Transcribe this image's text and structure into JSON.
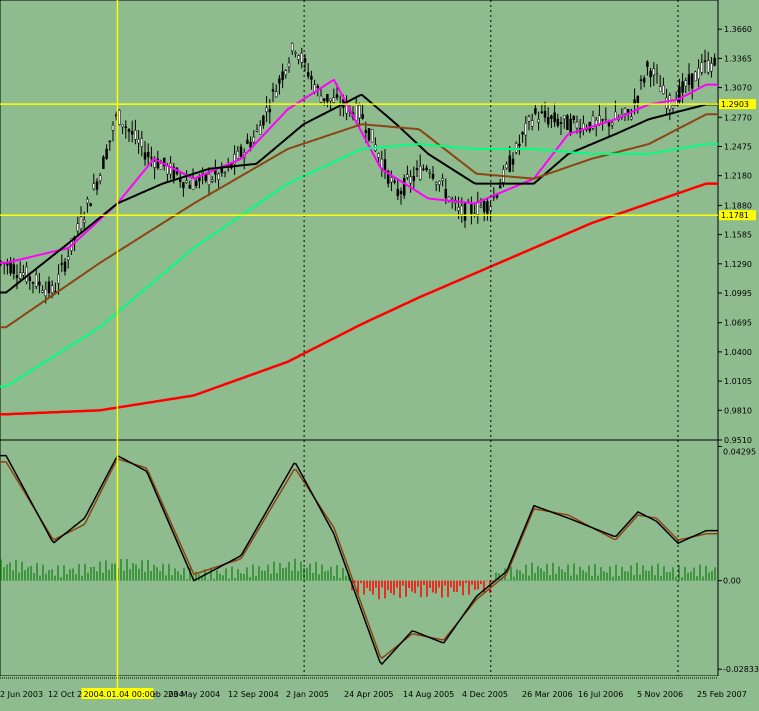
{
  "colors": {
    "background": "#8fbc8f",
    "axis": "#000000",
    "crosshair": "#ffff00",
    "highlight": "#ffff00",
    "grid": "#000000",
    "price_candle": "#000000",
    "ma_magenta": "#ff00ff",
    "ma_black": "#000000",
    "ma_brown": "#8b4513",
    "ma_green": "#00ff7f",
    "ma_red": "#ff0000",
    "macd_line": "#000000",
    "signal_line": "#8b4513",
    "hist_pos": "#228b22",
    "hist_neg": "#ff0000"
  },
  "crosshair": {
    "label": "2004.01.04 00:00",
    "date": "2004-01-04",
    "price_line_upper_label": "1.2903",
    "price_line_lower_label": "1.1781"
  },
  "chart_data": [
    {
      "type": "line",
      "panel": "price",
      "yticks": [
        "1.3660",
        "1.3365",
        "1.3070",
        "1.2770",
        "1.2475",
        "1.2180",
        "1.1880",
        "1.1585",
        "1.1290",
        "1.0995",
        "1.0695",
        "1.0400",
        "1.0105",
        "0.9810",
        "0.9510"
      ],
      "ylim": [
        0.951,
        1.3955
      ],
      "highlighted_levels": [
        1.2903,
        1.1781
      ],
      "series": [
        {
          "color_key": "price_candle",
          "x": [
            "2003-06-01",
            "2003-09-01",
            "2003-12-01",
            "2004-01-04",
            "2004-03-01",
            "2004-05-23",
            "2004-08-01",
            "2004-10-01",
            "2004-12-15",
            "2005-02-01",
            "2005-04-24",
            "2005-07-01",
            "2005-09-01",
            "2005-11-01",
            "2006-01-01",
            "2006-03-26",
            "2006-06-01",
            "2006-08-01",
            "2006-10-01",
            "2006-11-05",
            "2006-12-15",
            "2007-02-25"
          ],
          "values": [
            1.13,
            1.1,
            1.22,
            1.28,
            1.24,
            1.21,
            1.22,
            1.26,
            1.35,
            1.3,
            1.28,
            1.2,
            1.23,
            1.18,
            1.19,
            1.28,
            1.27,
            1.27,
            1.28,
            1.33,
            1.29,
            1.33
          ]
        },
        {
          "color_key": "ma_magenta",
          "x": [
            "2003-06-01",
            "2003-10-01",
            "2004-01-04",
            "2004-03-15",
            "2004-06-01",
            "2004-09-01",
            "2004-12-01",
            "2005-03-01",
            "2005-06-01",
            "2005-09-01",
            "2005-12-01",
            "2006-03-26",
            "2006-06-01",
            "2006-09-01",
            "2006-11-05",
            "2007-01-01",
            "2007-02-25"
          ],
          "values": [
            1.13,
            1.145,
            1.19,
            1.235,
            1.215,
            1.235,
            1.285,
            1.315,
            1.225,
            1.195,
            1.19,
            1.215,
            1.26,
            1.275,
            1.29,
            1.295,
            1.31
          ]
        },
        {
          "color_key": "ma_black",
          "x": [
            "2003-06-01",
            "2003-10-01",
            "2004-01-04",
            "2004-04-01",
            "2004-07-01",
            "2004-10-01",
            "2005-01-01",
            "2005-04-24",
            "2005-07-01",
            "2005-09-01",
            "2005-12-01",
            "2006-03-26",
            "2006-06-01",
            "2006-09-01",
            "2006-11-05",
            "2007-02-25"
          ],
          "values": [
            1.1,
            1.15,
            1.19,
            1.21,
            1.225,
            1.23,
            1.27,
            1.3,
            1.27,
            1.24,
            1.21,
            1.21,
            1.24,
            1.26,
            1.275,
            1.29
          ]
        },
        {
          "color_key": "ma_brown",
          "x": [
            "2003-06-01",
            "2003-12-01",
            "2004-06-01",
            "2004-12-01",
            "2005-04-24",
            "2005-08-14",
            "2005-12-04",
            "2006-03-26",
            "2006-07-16",
            "2006-11-05",
            "2007-02-25"
          ],
          "values": [
            1.065,
            1.13,
            1.19,
            1.245,
            1.27,
            1.265,
            1.22,
            1.215,
            1.235,
            1.25,
            1.28
          ]
        },
        {
          "color_key": "ma_green",
          "x": [
            "2003-06-01",
            "2003-12-01",
            "2004-06-01",
            "2004-12-01",
            "2005-04-24",
            "2005-08-14",
            "2005-12-04",
            "2006-03-26",
            "2006-07-16",
            "2006-11-05",
            "2007-02-25"
          ],
          "values": [
            1.005,
            1.065,
            1.145,
            1.21,
            1.245,
            1.25,
            1.245,
            1.245,
            1.24,
            1.24,
            1.25
          ]
        },
        {
          "color_key": "ma_red",
          "x": [
            "2003-06-01",
            "2003-12-01",
            "2004-06-01",
            "2004-12-01",
            "2005-04-24",
            "2005-08-14",
            "2005-12-04",
            "2006-03-26",
            "2006-07-16",
            "2006-11-05",
            "2007-02-25"
          ],
          "values": [
            0.977,
            0.981,
            0.996,
            1.03,
            1.068,
            1.095,
            1.12,
            1.145,
            1.17,
            1.19,
            1.21
          ]
        }
      ]
    },
    {
      "type": "line",
      "panel": "oscillator",
      "yticks": [
        "0.04295",
        "0.00",
        "-0.02833"
      ],
      "ylim": [
        -0.0305,
        0.045
      ],
      "xticks": [
        "2 Jun 2003",
        "12 Oct 2003",
        "2004.01.04 00:00",
        "22 Feb 2004",
        "23 May 2004",
        "12 Sep 2004",
        "2 Jan 2005",
        "24 Apr 2005",
        "14 Aug 2005",
        "4 Dec 2005",
        "26 Mar 2006",
        "16 Jul 2006",
        "5 Nov 2006",
        "25 Feb 2007"
      ],
      "series": [
        {
          "color_key": "macd_line",
          "x": [
            "2003-06-01",
            "2003-09-01",
            "2003-11-01",
            "2004-01-04",
            "2004-03-01",
            "2004-06-01",
            "2004-09-01",
            "2004-12-15",
            "2005-03-01",
            "2005-06-01",
            "2005-08-01",
            "2005-10-01",
            "2005-12-04",
            "2006-02-01",
            "2006-03-26",
            "2006-06-01",
            "2006-09-01",
            "2006-10-15",
            "2006-11-20",
            "2007-01-01",
            "2007-02-25"
          ],
          "values": [
            0.04,
            0.012,
            0.02,
            0.04,
            0.035,
            0.0,
            0.008,
            0.038,
            0.015,
            -0.027,
            -0.016,
            -0.02,
            -0.005,
            0.003,
            0.024,
            0.02,
            0.014,
            0.022,
            0.019,
            0.012,
            0.016
          ]
        },
        {
          "color_key": "signal_line",
          "x": [
            "2003-06-01",
            "2003-09-01",
            "2003-11-01",
            "2004-01-04",
            "2004-03-01",
            "2004-06-01",
            "2004-09-01",
            "2004-12-15",
            "2005-03-01",
            "2005-06-01",
            "2005-08-01",
            "2005-10-01",
            "2005-12-04",
            "2006-02-01",
            "2006-03-26",
            "2006-06-01",
            "2006-09-01",
            "2006-10-15",
            "2006-11-20",
            "2007-01-01",
            "2007-02-25"
          ],
          "values": [
            0.038,
            0.013,
            0.018,
            0.039,
            0.036,
            0.002,
            0.007,
            0.036,
            0.017,
            -0.025,
            -0.017,
            -0.019,
            -0.006,
            0.002,
            0.023,
            0.021,
            0.013,
            0.021,
            0.02,
            0.013,
            0.015
          ]
        }
      ]
    }
  ]
}
